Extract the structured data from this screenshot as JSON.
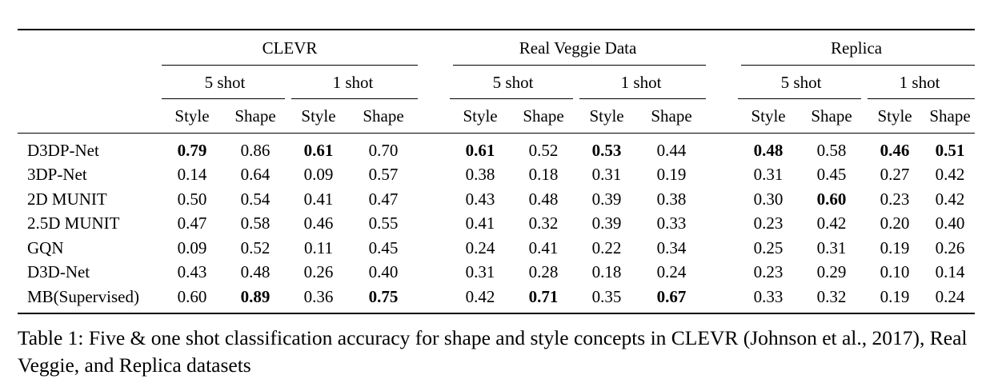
{
  "groups": [
    "CLEVR",
    "Real Veggie Data",
    "Replica"
  ],
  "shots": [
    "5 shot",
    "1 shot"
  ],
  "metrics": [
    "Style",
    "Shape"
  ],
  "rows": [
    {
      "name": "D3DP-Net",
      "values": [
        "0.79",
        "0.86",
        "0.61",
        "0.70",
        "0.61",
        "0.52",
        "0.53",
        "0.44",
        "0.48",
        "0.58",
        "0.46",
        "0.51"
      ],
      "bold": [
        0,
        2,
        4,
        6,
        8,
        10,
        11
      ]
    },
    {
      "name": "3DP-Net",
      "values": [
        "0.14",
        "0.64",
        "0.09",
        "0.57",
        "0.38",
        "0.18",
        "0.31",
        "0.19",
        "0.31",
        "0.45",
        "0.27",
        "0.42"
      ],
      "bold": []
    },
    {
      "name": "2D MUNIT",
      "values": [
        "0.50",
        "0.54",
        "0.41",
        "0.47",
        "0.43",
        "0.48",
        "0.39",
        "0.38",
        "0.30",
        "0.60",
        "0.23",
        "0.42"
      ],
      "bold": [
        9
      ]
    },
    {
      "name": "2.5D MUNIT",
      "values": [
        "0.47",
        "0.58",
        "0.46",
        "0.55",
        "0.41",
        "0.32",
        "0.39",
        "0.33",
        "0.23",
        "0.42",
        "0.20",
        "0.40"
      ],
      "bold": []
    },
    {
      "name": "GQN",
      "values": [
        "0.09",
        "0.52",
        "0.11",
        "0.45",
        "0.24",
        "0.41",
        "0.22",
        "0.34",
        "0.25",
        "0.31",
        "0.19",
        "0.26"
      ],
      "bold": []
    },
    {
      "name": "D3D-Net",
      "values": [
        "0.43",
        "0.48",
        "0.26",
        "0.40",
        "0.31",
        "0.28",
        "0.18",
        "0.24",
        "0.23",
        "0.29",
        "0.10",
        "0.14"
      ],
      "bold": []
    },
    {
      "name": "MB(Supervised)",
      "values": [
        "0.60",
        "0.89",
        "0.36",
        "0.75",
        "0.42",
        "0.71",
        "0.35",
        "0.67",
        "0.33",
        "0.32",
        "0.19",
        "0.24"
      ],
      "bold": [
        1,
        3,
        5,
        7
      ]
    }
  ],
  "caption": "Table 1: Five & one shot classification accuracy for shape and style concepts in CLEVR (Johnson et al., 2017), Real Veggie, and Replica datasets"
}
